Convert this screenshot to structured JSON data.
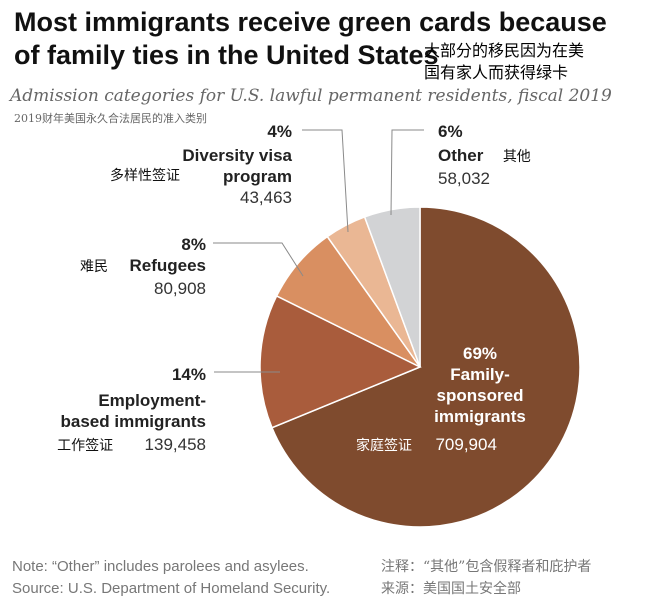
{
  "header": {
    "title": "Most immigrants receive green cards because of family ties in the United States",
    "title_cn_line1": "大部分的移民因为在美",
    "title_cn_line2": "国有家人而获得绿卡",
    "subtitle": "Admission categories for U.S. lawful permanent residents, fiscal 2019",
    "subtitle_cn": "2019财年美国永久合法居民的准入类别"
  },
  "chart_data": {
    "type": "pie",
    "title": "Admission categories for U.S. lawful permanent residents, fiscal 2019",
    "unit": "persons",
    "slices": [
      {
        "key": "family",
        "label": "Family-sponsored immigrants",
        "label_lines": [
          "Family-",
          "sponsored",
          "immigrants"
        ],
        "label_cn": "家庭签证",
        "percent": 69,
        "value": 709904,
        "value_text": "709,904",
        "color": "#7f4b2e"
      },
      {
        "key": "employment",
        "label": "Employment-based immigrants",
        "label_lines": [
          "Employment-",
          "based immigrants"
        ],
        "label_cn": "工作签证",
        "percent": 14,
        "value": 139458,
        "value_text": "139,458",
        "color": "#a95c3c"
      },
      {
        "key": "refugees",
        "label": "Refugees",
        "label_lines": [
          "Refugees"
        ],
        "label_cn": "难民",
        "percent": 8,
        "value": 80908,
        "value_text": "80,908",
        "color": "#d98f61"
      },
      {
        "key": "diversity",
        "label": "Diversity visa program",
        "label_lines": [
          "Diversity visa",
          "program"
        ],
        "label_cn": "多样性签证",
        "percent": 4,
        "value": 43463,
        "value_text": "43,463",
        "color": "#eab794"
      },
      {
        "key": "other",
        "label": "Other",
        "label_lines": [
          "Other"
        ],
        "label_cn": "其他",
        "percent": 6,
        "value": 58032,
        "value_text": "58,032",
        "color": "#d2d3d5"
      }
    ]
  },
  "notes": {
    "note": "Note: “Other” includes parolees and asylees.",
    "source": "Source: U.S. Department of Homeland Security.",
    "note_cn": "注释：“其他”包含假释者和庇护者",
    "source_cn": "来源：美国国土安全部"
  }
}
